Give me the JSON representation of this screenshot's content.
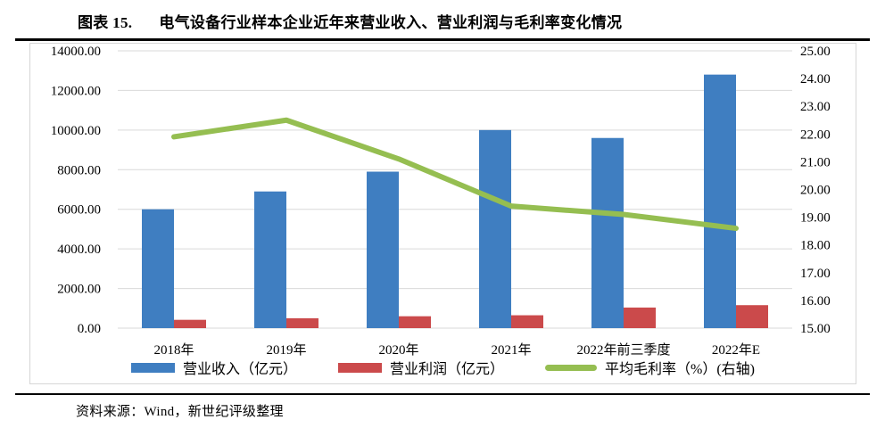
{
  "figure": {
    "label": "图表 15.",
    "title": "电气设备行业样本企业近年来营业收入、营业利润与毛利率变化情况"
  },
  "source_note": "资料来源：Wind，新世纪评级整理",
  "colors": {
    "revenue_bar": "#3F7EC1",
    "profit_bar": "#CB4A4B",
    "margin_line": "#95BE51",
    "gridline": "#D9D9D9",
    "frame_border": "#D6D6D6",
    "rule": "#000000",
    "text": "#000000"
  },
  "chart_data": {
    "type": "bar",
    "subtype": "grouped bars with secondary-axis line",
    "title": "电气设备行业样本企业近年来营业收入、营业利润与毛利率变化情况",
    "categories": [
      "2018年",
      "2019年",
      "2020年",
      "2021年",
      "2022年前三季度",
      "2022年E"
    ],
    "series": [
      {
        "name": "营业收入（亿元）",
        "type": "bar",
        "axis": "left",
        "color": "#3F7EC1",
        "values": [
          6000,
          6900,
          7900,
          10000,
          9600,
          12800
        ]
      },
      {
        "name": "营业利润（亿元）",
        "type": "bar",
        "axis": "left",
        "color": "#CB4A4B",
        "values": [
          420,
          500,
          600,
          650,
          1040,
          1160
        ]
      },
      {
        "name": "平均毛利率（%）(右轴)",
        "type": "line",
        "axis": "right",
        "color": "#95BE51",
        "values": [
          21.9,
          22.5,
          21.1,
          19.4,
          19.1,
          18.6
        ]
      }
    ],
    "left_axis": {
      "min": 0,
      "max": 14000,
      "step": 2000
    },
    "right_axis": {
      "min": 15,
      "max": 25,
      "step": 1
    },
    "left_ticks": [
      "0.00",
      "2000.00",
      "4000.00",
      "6000.00",
      "8000.00",
      "10000.00",
      "12000.00",
      "14000.00"
    ],
    "right_ticks": [
      "15.00",
      "16.00",
      "17.00",
      "18.00",
      "19.00",
      "20.00",
      "21.00",
      "22.00",
      "23.00",
      "24.00",
      "25.00"
    ],
    "grid": true,
    "legend_position": "bottom",
    "xlabel": "",
    "ylabel_left": "亿元",
    "ylabel_right": "%"
  }
}
